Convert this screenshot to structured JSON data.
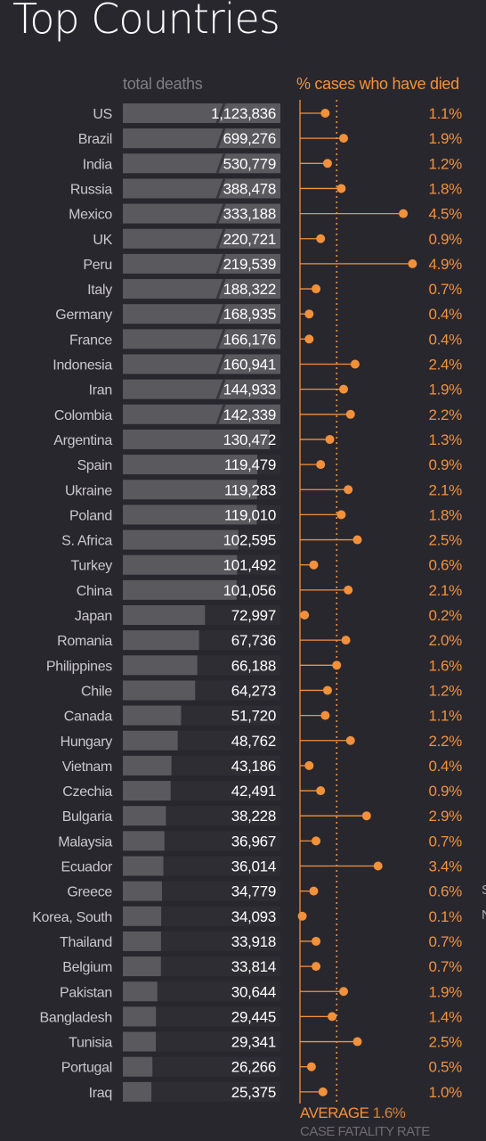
{
  "title": "Top Countries",
  "headers": {
    "deaths": "total deaths",
    "cfr": "% cases who have died"
  },
  "footer": {
    "average_label": "AVERAGE",
    "average_value": "1.6%",
    "subtitle": "CASE FATALITY RATE"
  },
  "clipped_text": [
    "S",
    "N"
  ],
  "colors": {
    "background": "#29272e",
    "bar": "#5a595e",
    "bar_track": "#2f2d34",
    "accent": "#f2913b",
    "label": "#c9c8cc"
  },
  "chart_data": {
    "type": "bar",
    "categories": [
      "US",
      "Brazil",
      "India",
      "Russia",
      "Mexico",
      "UK",
      "Peru",
      "Italy",
      "Germany",
      "France",
      "Indonesia",
      "Iran",
      "Colombia",
      "Argentina",
      "Spain",
      "Ukraine",
      "Poland",
      "S. Africa",
      "Turkey",
      "China",
      "Japan",
      "Romania",
      "Philippines",
      "Chile",
      "Canada",
      "Hungary",
      "Vietnam",
      "Czechia",
      "Bulgaria",
      "Malaysia",
      "Ecuador",
      "Greece",
      "Korea, South",
      "Thailand",
      "Belgium",
      "Pakistan",
      "Bangladesh",
      "Tunisia",
      "Portugal",
      "Iraq"
    ],
    "series": [
      {
        "name": "total deaths",
        "values": [
          1123836,
          699276,
          530779,
          388478,
          333188,
          220721,
          219539,
          188322,
          168935,
          166176,
          160941,
          144933,
          142339,
          130472,
          119479,
          119283,
          119010,
          102595,
          101492,
          101056,
          72997,
          67736,
          66188,
          64273,
          51720,
          48762,
          43186,
          42491,
          38228,
          36967,
          36014,
          34779,
          34093,
          33918,
          33814,
          30644,
          29445,
          29341,
          26266,
          25375
        ],
        "labels": [
          "1,123,836",
          "699,276",
          "530,779",
          "388,478",
          "333,188",
          "220,721",
          "219,539",
          "188,322",
          "168,935",
          "166,176",
          "160,941",
          "144,933",
          "142,339",
          "130,472",
          "119,479",
          "119,283",
          "119,010",
          "102,595",
          "101,492",
          "101,056",
          "72,997",
          "67,736",
          "66,188",
          "64,273",
          "51,720",
          "48,762",
          "43,186",
          "42,491",
          "38,228",
          "36,967",
          "36,014",
          "34,779",
          "34,093",
          "33,918",
          "33,814",
          "30,644",
          "29,445",
          "29,341",
          "26,266",
          "25,375"
        ]
      },
      {
        "name": "% cases who have died",
        "values": [
          1.1,
          1.9,
          1.2,
          1.8,
          4.5,
          0.9,
          4.9,
          0.7,
          0.4,
          0.4,
          2.4,
          1.9,
          2.2,
          1.3,
          0.9,
          2.1,
          1.8,
          2.5,
          0.6,
          2.1,
          0.2,
          2.0,
          1.6,
          1.2,
          1.1,
          2.2,
          0.4,
          0.9,
          2.9,
          0.7,
          3.4,
          0.6,
          0.1,
          0.7,
          0.7,
          1.9,
          1.4,
          2.5,
          0.5,
          1.0
        ],
        "labels": [
          "1.1%",
          "1.9%",
          "1.2%",
          "1.8%",
          "4.5%",
          "0.9%",
          "4.9%",
          "0.7%",
          "0.4%",
          "0.4%",
          "2.4%",
          "1.9%",
          "2.2%",
          "1.3%",
          "0.9%",
          "2.1%",
          "1.8%",
          "2.5%",
          "0.6%",
          "2.1%",
          "0.2%",
          "2.0%",
          "1.6%",
          "1.2%",
          "1.1%",
          "2.2%",
          "0.4%",
          "0.9%",
          "2.9%",
          "0.7%",
          "3.4%",
          "0.6%",
          "0.1%",
          "0.7%",
          "0.7%",
          "1.9%",
          "1.4%",
          "2.5%",
          "0.5%",
          "1.0%"
        ]
      }
    ],
    "average": 1.6,
    "deaths_axis_cap": 140000,
    "cfr_axis_max": 5.0,
    "legend": "none",
    "grid": false
  }
}
